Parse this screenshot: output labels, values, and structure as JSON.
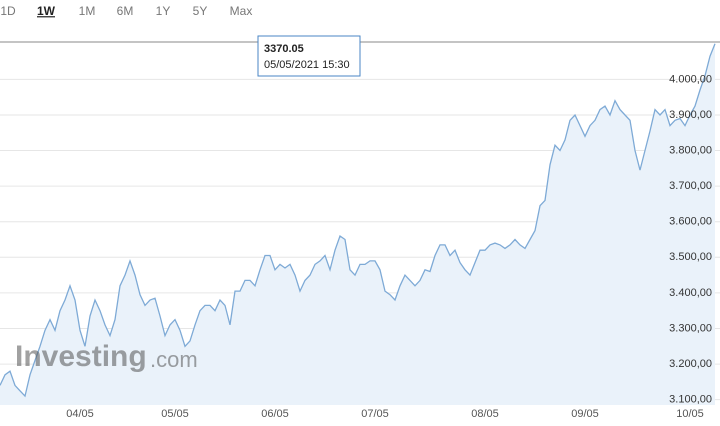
{
  "chart_data": {
    "type": "area",
    "ranges": [
      "1D",
      "1W",
      "1M",
      "6M",
      "1Y",
      "5Y",
      "Max"
    ],
    "selected_range": "1W",
    "tooltip": {
      "price": "3370.05",
      "time": "05/05/2021 15:30"
    },
    "watermark": {
      "brand": "Investing",
      "suffix": ".com"
    },
    "color": "#7eaad6",
    "fill": "#eaf2fa",
    "grid": true,
    "categories": [
      null,
      null,
      null,
      null,
      null,
      null,
      null,
      null,
      null,
      null,
      null,
      null,
      null,
      null,
      null,
      null,
      "04/05",
      null,
      null,
      null,
      null,
      null,
      null,
      null,
      null,
      null,
      null,
      null,
      null,
      null,
      null,
      null,
      null,
      null,
      null,
      "05/05",
      null,
      null,
      null,
      null,
      null,
      null,
      null,
      null,
      null,
      null,
      null,
      null,
      null,
      null,
      null,
      null,
      null,
      null,
      null,
      "06/05",
      null,
      null,
      null,
      null,
      null,
      null,
      null,
      null,
      null,
      null,
      null,
      null,
      null,
      null,
      null,
      null,
      null,
      null,
      null,
      "07/05",
      null,
      null,
      null,
      null,
      null,
      null,
      null,
      null,
      null,
      null,
      null,
      null,
      null,
      null,
      null,
      null,
      null,
      null,
      null,
      null,
      null,
      "08/05",
      null,
      null,
      null,
      null,
      null,
      null,
      null,
      null,
      null,
      null,
      null,
      null,
      null,
      null,
      null,
      null,
      null,
      null,
      null,
      "09/05",
      null,
      null,
      null,
      null,
      null,
      null,
      null,
      null,
      null,
      null,
      null,
      null,
      null,
      null,
      null,
      null,
      null,
      null,
      null,
      null,
      "10/05",
      null,
      null,
      null,
      null,
      null
    ],
    "values": [
      3140,
      3170,
      3180,
      3140,
      3125,
      3110,
      3170,
      3210,
      3250,
      3295,
      3325,
      3295,
      3350,
      3380,
      3420,
      3380,
      3295,
      3250,
      3335,
      3380,
      3350,
      3310,
      3280,
      3325,
      3420,
      3450,
      3490,
      3450,
      3395,
      3365,
      3380,
      3385,
      3335,
      3280,
      3310,
      3325,
      3295,
      3250,
      3265,
      3310,
      3350,
      3365,
      3365,
      3350,
      3380,
      3365,
      3310,
      3405,
      3405,
      3435,
      3435,
      3420,
      3465,
      3505,
      3505,
      3465,
      3480,
      3470,
      3480,
      3450,
      3405,
      3435,
      3450,
      3480,
      3490,
      3505,
      3465,
      3520,
      3560,
      3550,
      3465,
      3450,
      3480,
      3480,
      3490,
      3490,
      3465,
      3405,
      3395,
      3380,
      3420,
      3450,
      3435,
      3420,
      3435,
      3465,
      3460,
      3505,
      3535,
      3535,
      3505,
      3520,
      3485,
      3465,
      3450,
      3485,
      3520,
      3520,
      3535,
      3540,
      3535,
      3525,
      3535,
      3550,
      3535,
      3525,
      3550,
      3575,
      3645,
      3660,
      3760,
      3815,
      3800,
      3830,
      3885,
      3900,
      3870,
      3840,
      3870,
      3885,
      3915,
      3925,
      3900,
      3940,
      3915,
      3900,
      3885,
      3800,
      3745,
      3800,
      3855,
      3915,
      3900,
      3915,
      3870,
      3885,
      3890,
      3870,
      3900,
      3925,
      3970,
      4010,
      4065,
      4100
    ],
    "ylim": [
      3085,
      4105
    ],
    "yticks": [
      {
        "value": 3100,
        "label": "3.100,00"
      },
      {
        "value": 3200,
        "label": "3.200,00"
      },
      {
        "value": 3300,
        "label": "3.300,00"
      },
      {
        "value": 3400,
        "label": "3.400,00"
      },
      {
        "value": 3500,
        "label": "3.500,00"
      },
      {
        "value": 3600,
        "label": "3.600,00"
      },
      {
        "value": 3700,
        "label": "3.700,00"
      },
      {
        "value": 3800,
        "label": "3.800,00"
      },
      {
        "value": 3900,
        "label": "3.900,00"
      },
      {
        "value": 4000,
        "label": "4.000,00"
      }
    ]
  }
}
